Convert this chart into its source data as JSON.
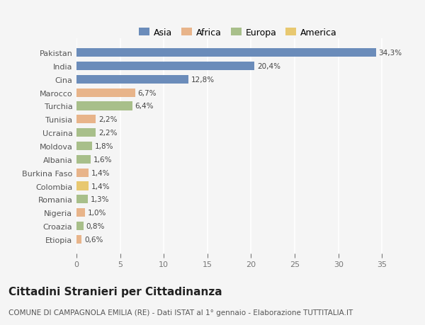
{
  "countries": [
    "Pakistan",
    "India",
    "Cina",
    "Marocco",
    "Turchia",
    "Tunisia",
    "Ucraina",
    "Moldova",
    "Albania",
    "Burkina Faso",
    "Colombia",
    "Romania",
    "Nigeria",
    "Croazia",
    "Etiopia"
  ],
  "values": [
    34.3,
    20.4,
    12.8,
    6.7,
    6.4,
    2.2,
    2.2,
    1.8,
    1.6,
    1.4,
    1.4,
    1.3,
    1.0,
    0.8,
    0.6
  ],
  "labels": [
    "34,3%",
    "20,4%",
    "12,8%",
    "6,7%",
    "6,4%",
    "2,2%",
    "2,2%",
    "1,8%",
    "1,6%",
    "1,4%",
    "1,4%",
    "1,3%",
    "1,0%",
    "0,8%",
    "0,6%"
  ],
  "colors": [
    "#6b8cba",
    "#6b8cba",
    "#6b8cba",
    "#e8b48a",
    "#a8bf8a",
    "#e8b48a",
    "#a8bf8a",
    "#a8bf8a",
    "#a8bf8a",
    "#e8b48a",
    "#e8c870",
    "#a8bf8a",
    "#e8b48a",
    "#a8bf8a",
    "#e8b48a"
  ],
  "legend_labels": [
    "Asia",
    "Africa",
    "Europa",
    "America"
  ],
  "legend_colors": [
    "#6b8cba",
    "#e8b48a",
    "#a8bf8a",
    "#e8c870"
  ],
  "title": "Cittadini Stranieri per Cittadinanza",
  "subtitle": "COMUNE DI CAMPAGNOLA EMILIA (RE) - Dati ISTAT al 1° gennaio - Elaborazione TUTTITALIA.IT",
  "xlim": [
    0,
    37
  ],
  "xticks": [
    0,
    5,
    10,
    15,
    20,
    25,
    30,
    35
  ],
  "bg_color": "#f5f5f5",
  "bar_height": 0.65,
  "title_fontsize": 11,
  "subtitle_fontsize": 7.5,
  "label_fontsize": 7.5,
  "tick_fontsize": 8,
  "legend_fontsize": 9
}
